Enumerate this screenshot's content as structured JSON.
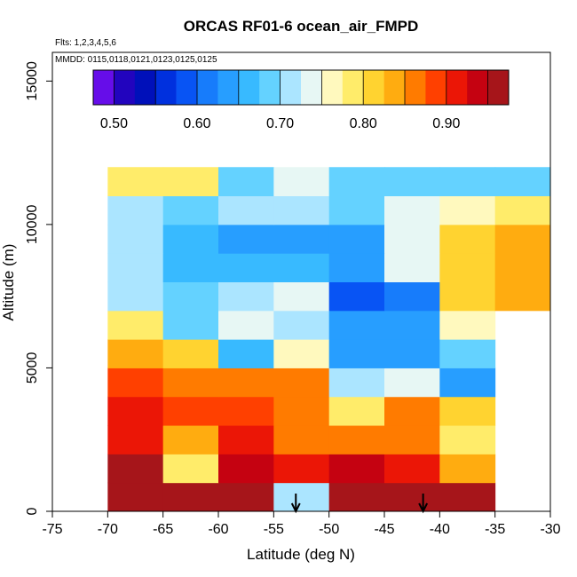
{
  "chart_data": {
    "type": "heatmap",
    "title": "ORCAS RF01-6 ocean_air_FMPD",
    "xlabel": "Latitude (deg N)",
    "ylabel": "Altitude (m)",
    "xlim": [
      -75,
      -30
    ],
    "ylim": [
      0,
      16000
    ],
    "xticks": [
      -75,
      -70,
      -65,
      -60,
      -55,
      -50,
      -45,
      -40,
      -35,
      -30
    ],
    "yticks": [
      0,
      5000,
      10000,
      15000
    ],
    "info_flights": "Flts: 1,2,3,4,5,6",
    "info_dates": "MMDD: 0115,0118,0121,0123,0125,0125",
    "colorbar": {
      "min": 0.475,
      "max": 0.975,
      "ticks": [
        0.5,
        0.6,
        0.7,
        0.8,
        0.9
      ],
      "tick_labels": [
        "0.50",
        "0.60",
        "0.70",
        "0.80",
        "0.90"
      ],
      "n_colors": 20
    },
    "bin_lat_edges": [
      -70,
      -65,
      -60,
      -55,
      -50,
      -45,
      -40,
      -35,
      -30
    ],
    "bin_alt_edges": [
      0,
      1000,
      2000,
      3000,
      4000,
      5000,
      6000,
      7000,
      8000,
      9000,
      10000,
      11000,
      12000
    ],
    "cells": [
      [
        0.96,
        0.95,
        0.95,
        0.72,
        0.975,
        0.975,
        0.975,
        null
      ],
      [
        0.96,
        0.78,
        0.93,
        0.92,
        0.93,
        0.92,
        0.84,
        null
      ],
      [
        0.91,
        0.83,
        0.91,
        0.87,
        0.86,
        0.85,
        0.79,
        null
      ],
      [
        0.92,
        0.89,
        0.89,
        0.86,
        0.79,
        0.85,
        0.81,
        null
      ],
      [
        0.88,
        0.87,
        0.85,
        0.86,
        0.71,
        0.73,
        0.64,
        null
      ],
      [
        0.83,
        0.8,
        0.66,
        0.77,
        0.64,
        0.64,
        0.69,
        null
      ],
      [
        0.78,
        0.69,
        0.74,
        0.71,
        0.64,
        0.64,
        0.77,
        null
      ],
      [
        0.72,
        0.68,
        0.71,
        0.73,
        0.58,
        0.61,
        0.81,
        0.83
      ],
      [
        0.71,
        0.66,
        0.67,
        0.66,
        0.64,
        0.74,
        0.82,
        0.84
      ],
      [
        0.7,
        0.67,
        0.64,
        0.63,
        0.64,
        0.73,
        0.82,
        0.84
      ],
      [
        0.72,
        0.69,
        0.71,
        0.72,
        0.69,
        0.74,
        0.77,
        0.79
      ],
      [
        0.79,
        0.79,
        0.69,
        0.74,
        0.69,
        0.69,
        0.69,
        0.69
      ]
    ],
    "arrows_lat": [
      -53,
      -41.5
    ]
  }
}
